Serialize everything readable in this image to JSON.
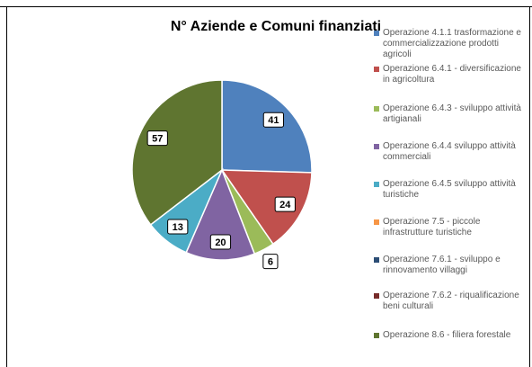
{
  "chart_data": {
    "type": "pie",
    "title": "N° Aziende e Comuni finanziati",
    "categories": [
      "Operazione 4.1.1 trasformazione e commercializzazione prodotti agricoli",
      "Operazione 6.4.1 - diversificazione in agricoltura",
      "Operazione 6.4.3 - sviluppo attività artigianali",
      "Operazione 6.4.4 sviluppo attività commerciali",
      "Operazione 6.4.5 sviluppo attività turistiche",
      "Operazione 7.5 - piccole infrastrutture turistiche",
      "Operazione 7.6.1 - sviluppo e rinnovamento villaggi",
      "Operazione 7.6.2 - riqualificazione beni culturali",
      "Operazione 8.6 - filiera forestale"
    ],
    "values": [
      41,
      24,
      6,
      20,
      13,
      0,
      0,
      0,
      57
    ],
    "colors": [
      "#4f81bd",
      "#c0504d",
      "#9bbb59",
      "#8064a2",
      "#4bacc6",
      "#f79646",
      "#2c4d75",
      "#772c2a",
      "#5f7530"
    ],
    "legend": "right"
  }
}
